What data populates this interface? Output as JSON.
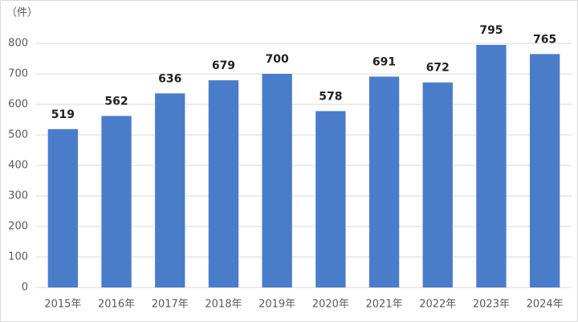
{
  "chart_data": {
    "type": "bar",
    "ylabel": "（件）",
    "categories": [
      "2015年",
      "2016年",
      "2017年",
      "2018年",
      "2019年",
      "2020年",
      "2021年",
      "2022年",
      "2023年",
      "2024年"
    ],
    "values": [
      519,
      562,
      636,
      679,
      700,
      578,
      691,
      672,
      795,
      765
    ],
    "color": "#4a7dc9",
    "ylim": [
      0,
      800
    ],
    "yticks": [
      0,
      100,
      200,
      300,
      400,
      500,
      600,
      700,
      800
    ],
    "grid": true
  }
}
